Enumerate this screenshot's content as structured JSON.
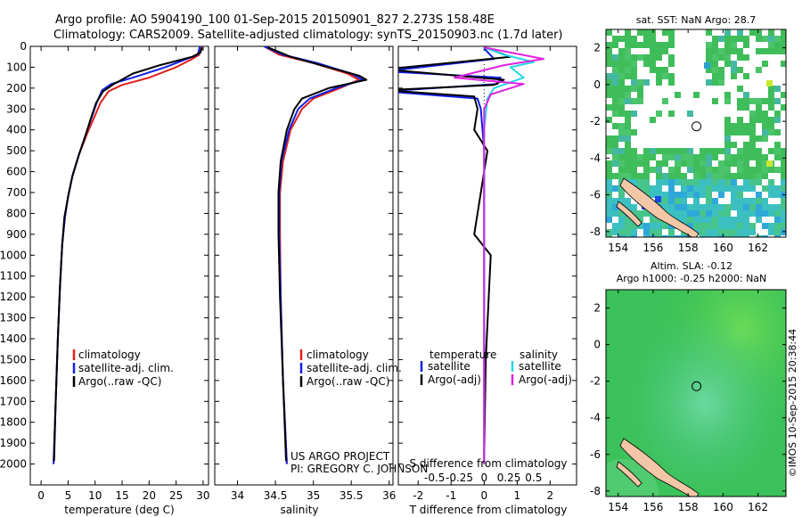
{
  "title": {
    "line1": "Argo profile: AO 5904190_100 01-Sep-2015 20150901_827 2.273S 158.48E",
    "line2": "Climatology: CARS2009. Satellite-adjusted climatology: synTS_20150903.nc (1.7d later)"
  },
  "colors": {
    "climatology": "#e0201a",
    "satellite": "#1020e8",
    "argo": "#000000",
    "sat_salinity": "#20d8e8",
    "argo_salinity": "#e020e0"
  },
  "credit": {
    "line1": "US ARGO PROJECT",
    "line2": "PI: GREGORY C. JOHNSON"
  },
  "timestamp": "©IMOS 10-Sep-2015 20:38:44",
  "map1": {
    "title": "sat. SST: NaN Argo: 28.7"
  },
  "map2": {
    "title1": "Altim. SLA: -0.12",
    "title2": "Argo h1000: -0.25 h2000: NaN"
  },
  "chart_data": [
    {
      "type": "line",
      "name": "temperature-profile",
      "xlabel": "temperature (deg C)",
      "ylabel": "",
      "xlim": [
        -2,
        31
      ],
      "ylim": [
        2100,
        0
      ],
      "xticks": [
        "0",
        "5",
        "10",
        "15",
        "20",
        "25",
        "30"
      ],
      "yticks": [
        "0",
        "100",
        "200",
        "300",
        "400",
        "500",
        "600",
        "700",
        "800",
        "900",
        "1000",
        "1100",
        "1200",
        "1300",
        "1400",
        "1500",
        "1600",
        "1700",
        "1800",
        "1900",
        "2000"
      ],
      "legend": [
        "climatology",
        "satellite-adj. clim.",
        "Argo(..raw -QC)"
      ],
      "series": [
        {
          "name": "climatology",
          "points": [
            [
              29.5,
              0
            ],
            [
              29.3,
              40
            ],
            [
              28,
              60
            ],
            [
              25,
              100
            ],
            [
              20,
              150
            ],
            [
              15,
              185
            ],
            [
              12.5,
              215
            ],
            [
              11,
              270
            ],
            [
              10,
              330
            ],
            [
              8.5,
              420
            ],
            [
              7,
              520
            ],
            [
              5.8,
              620
            ],
            [
              5,
              720
            ],
            [
              4.4,
              820
            ],
            [
              3.9,
              950
            ],
            [
              3.5,
              1150
            ],
            [
              3.1,
              1400
            ],
            [
              2.7,
              1700
            ],
            [
              2.3,
              2000
            ]
          ]
        },
        {
          "name": "satellite-adj. clim.",
          "points": [
            [
              29.4,
              0
            ],
            [
              29,
              40
            ],
            [
              27,
              60
            ],
            [
              23,
              100
            ],
            [
              17,
              150
            ],
            [
              13,
              180
            ],
            [
              11.3,
              210
            ],
            [
              10.3,
              270
            ],
            [
              9.5,
              330
            ],
            [
              8.3,
              420
            ],
            [
              7,
              520
            ],
            [
              5.8,
              620
            ],
            [
              5,
              720
            ],
            [
              4.4,
              820
            ],
            [
              3.9,
              950
            ],
            [
              3.5,
              1150
            ],
            [
              3.1,
              1400
            ],
            [
              2.7,
              1700
            ],
            [
              2.3,
              2000
            ]
          ]
        },
        {
          "name": "Argo(..raw -QC)",
          "points": [
            [
              29.8,
              5
            ],
            [
              29.5,
              30
            ],
            [
              28,
              50
            ],
            [
              22,
              90
            ],
            [
              17,
              130
            ],
            [
              13.5,
              180
            ],
            [
              11.5,
              215
            ],
            [
              10.2,
              270
            ],
            [
              9.4,
              330
            ],
            [
              8.3,
              420
            ],
            [
              7,
              520
            ],
            [
              5.8,
              620
            ],
            [
              5,
              720
            ],
            [
              4.3,
              820
            ],
            [
              3.9,
              950
            ],
            [
              3.5,
              1150
            ],
            [
              3.1,
              1400
            ],
            [
              2.7,
              1700
            ],
            [
              2.4,
              1985
            ]
          ]
        }
      ]
    },
    {
      "type": "line",
      "name": "salinity-profile",
      "xlabel": "salinity",
      "xlim": [
        33.7,
        36.05
      ],
      "ylim": [
        2100,
        0
      ],
      "xticks": [
        "34",
        "34.5",
        "35",
        "35.5",
        "36"
      ],
      "legend": [
        "climatology",
        "satellite-adj. clim.",
        "Argo(..raw -QC)"
      ],
      "series": [
        {
          "name": "climatology",
          "points": [
            [
              34.35,
              0
            ],
            [
              34.55,
              40
            ],
            [
              35.0,
              80
            ],
            [
              35.45,
              130
            ],
            [
              35.6,
              160
            ],
            [
              35.35,
              200
            ],
            [
              35.0,
              250
            ],
            [
              34.85,
              300
            ],
            [
              34.7,
              400
            ],
            [
              34.6,
              550
            ],
            [
              34.56,
              700
            ],
            [
              34.56,
              900
            ],
            [
              34.57,
              1200
            ],
            [
              34.6,
              1600
            ],
            [
              34.65,
              2000
            ]
          ]
        },
        {
          "name": "satellite-adj. clim.",
          "points": [
            [
              34.35,
              0
            ],
            [
              34.6,
              40
            ],
            [
              35.05,
              80
            ],
            [
              35.5,
              130
            ],
            [
              35.65,
              160
            ],
            [
              35.3,
              200
            ],
            [
              34.95,
              250
            ],
            [
              34.8,
              300
            ],
            [
              34.68,
              400
            ],
            [
              34.58,
              550
            ],
            [
              34.55,
              700
            ],
            [
              34.55,
              900
            ],
            [
              34.57,
              1200
            ],
            [
              34.6,
              1600
            ],
            [
              34.65,
              2000
            ]
          ]
        },
        {
          "name": "Argo(..raw -QC)",
          "points": [
            [
              34.4,
              5
            ],
            [
              34.7,
              50
            ],
            [
              35.1,
              90
            ],
            [
              35.6,
              140
            ],
            [
              35.7,
              160
            ],
            [
              35.2,
              200
            ],
            [
              34.85,
              250
            ],
            [
              34.75,
              300
            ],
            [
              34.65,
              400
            ],
            [
              34.57,
              550
            ],
            [
              34.54,
              700
            ],
            [
              34.54,
              900
            ],
            [
              34.56,
              1200
            ],
            [
              34.6,
              1600
            ],
            [
              34.64,
              1985
            ]
          ]
        }
      ]
    },
    {
      "type": "line",
      "name": "difference-profile",
      "xlabel": "T difference from climatology",
      "xlabel_top": "S difference from climatology",
      "xlim": [
        -2.6,
        2.8
      ],
      "ylim": [
        2100,
        0
      ],
      "xticks_T": [
        "-2",
        "-1",
        "0",
        "1",
        "2"
      ],
      "xticks_S": [
        "-0.5",
        "-0.25",
        "0",
        "0.25",
        "0.5"
      ],
      "legend_titles": [
        "temperature",
        "salinity"
      ],
      "legend": [
        "satellite",
        "Argo(-adj)",
        "satellite",
        "Argo(-adj)"
      ],
      "series": [
        {
          "name": "T satellite",
          "points": [
            [
              0,
              10
            ],
            [
              0.3,
              60
            ],
            [
              -3,
              120
            ],
            [
              0.5,
              150
            ],
            [
              0.4,
              180
            ],
            [
              -3,
              215
            ],
            [
              -0.2,
              250
            ],
            [
              -0.1,
              300
            ],
            [
              0,
              500
            ],
            [
              0,
              1000
            ],
            [
              0,
              2000
            ]
          ]
        },
        {
          "name": "T Argo(-adj)",
          "points": [
            [
              0,
              5
            ],
            [
              0.8,
              50
            ],
            [
              -3,
              110
            ],
            [
              0.6,
              160
            ],
            [
              0.3,
              185
            ],
            [
              -3,
              210
            ],
            [
              -0.3,
              240
            ],
            [
              -0.2,
              300
            ],
            [
              -0.3,
              400
            ],
            [
              0.1,
              500
            ],
            [
              0,
              600
            ],
            [
              -0.2,
              800
            ],
            [
              -0.3,
              900
            ],
            [
              0.2,
              1000
            ],
            [
              0.05,
              1500
            ],
            [
              0,
              1980
            ]
          ]
        },
        {
          "name": "S satellite",
          "points": [
            [
              0,
              5
            ],
            [
              0.6,
              40
            ],
            [
              1.5,
              75
            ],
            [
              0.8,
              100
            ],
            [
              1.2,
              150
            ],
            [
              0.3,
              200
            ],
            [
              0.1,
              250
            ],
            [
              0,
              400
            ],
            [
              0,
              2000
            ]
          ]
        },
        {
          "name": "S Argo(-adj)",
          "points": [
            [
              0,
              5
            ],
            [
              1.8,
              60
            ],
            [
              0.6,
              90
            ],
            [
              -0.9,
              150
            ],
            [
              1.2,
              180
            ],
            [
              0.2,
              230
            ],
            [
              0,
              300
            ],
            [
              0,
              2000
            ]
          ]
        }
      ]
    },
    {
      "type": "heatmap",
      "name": "sst-map",
      "title": "sat. SST: NaN Argo: 28.7",
      "xlim": [
        153.3,
        163.6
      ],
      "ylim": [
        -8.3,
        3.0
      ],
      "xticks": [
        "154",
        "156",
        "158",
        "160",
        "162"
      ],
      "yticks": [
        "2",
        "0",
        "-2",
        "-4",
        "-6",
        "-8"
      ],
      "float_position": [
        158.48,
        -2.273
      ]
    },
    {
      "type": "heatmap",
      "name": "sla-map",
      "title": "Altim. SLA: -0.12 / Argo h1000: -0.25 h2000: NaN",
      "xlim": [
        153.3,
        163.6
      ],
      "ylim": [
        -8.3,
        3.0
      ],
      "xticks": [
        "154",
        "156",
        "158",
        "160",
        "162"
      ],
      "yticks": [
        "2",
        "0",
        "-2",
        "-4",
        "-6",
        "-8"
      ],
      "float_position": [
        158.48,
        -2.273
      ]
    }
  ]
}
